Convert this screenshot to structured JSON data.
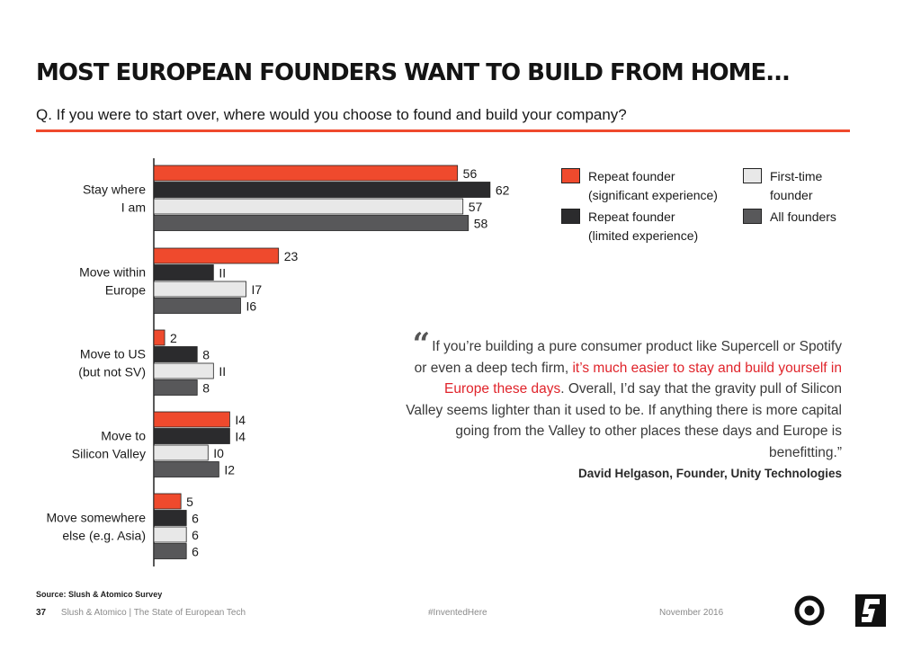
{
  "header": {
    "title": "MOST EUROPEAN FOUNDERS WANT TO BUILD FROM HOME...",
    "question": "Q. If you were to start over, where would you choose to found and build your company?"
  },
  "chart_data": {
    "type": "bar",
    "orientation": "horizontal",
    "categories": [
      [
        "Stay where",
        "I am"
      ],
      [
        "Move within",
        "Europe"
      ],
      [
        "Move to US",
        "(but not SV)"
      ],
      [
        "Move to",
        "Silicon Valley"
      ],
      [
        "Move somewhere",
        "else (e.g. Asia)"
      ]
    ],
    "series": [
      {
        "name": "Repeat founder (significant experience)",
        "color": "#ef4a2d",
        "values": [
          56,
          23,
          2,
          14,
          5
        ],
        "value_labels": [
          "56",
          "23",
          "2",
          "I4",
          "5"
        ]
      },
      {
        "name": "Repeat founder (limited experience)",
        "color": "#2b2b2d",
        "values": [
          62,
          11,
          8,
          14,
          6
        ],
        "value_labels": [
          "62",
          "II",
          "8",
          "I4",
          "6"
        ]
      },
      {
        "name": "First-time founder",
        "color": "#e8e8e8",
        "values": [
          57,
          17,
          11,
          10,
          6
        ],
        "value_labels": [
          "57",
          "I7",
          "II",
          "I0",
          "6"
        ]
      },
      {
        "name": "All founders",
        "color": "#58585a",
        "values": [
          58,
          16,
          8,
          12,
          6
        ],
        "value_labels": [
          "58",
          "I6",
          "8",
          "I2",
          "6"
        ]
      }
    ],
    "xlim": [
      0,
      62
    ],
    "legend_position": "top-right",
    "grid": false
  },
  "legend": [
    {
      "lines": [
        "Repeat founder",
        "(significant experience)"
      ],
      "color": "#ef4a2d"
    },
    {
      "lines": [
        "Repeat founder",
        "(limited experience)"
      ],
      "color": "#2b2b2d"
    },
    {
      "lines": [
        "First-time",
        "founder"
      ],
      "color": "#e8e8e8"
    },
    {
      "lines": [
        "All founders"
      ],
      "color": "#58585a"
    }
  ],
  "quote": {
    "open_mark": "“",
    "lead": "If you’re building a pure consumer product like Supercell or Spotify or even a deep tech firm,",
    "highlight": "it’s much easier to stay and build yourself in Europe these days",
    "tail": ". Overall, I’d say that the gravity pull of Silicon Valley seems lighter than it used to be. If anything there is more capital going from the Valley to other places these days and Europe is benefitting.”",
    "attribution": "David Helgason, Founder, Unity Technologies",
    "highlight_color": "#e0242b"
  },
  "footer": {
    "source": "Source: Slush & Atomico Survey",
    "page_number": "37",
    "publication": "Slush & Atomico | The State of European Tech",
    "hashtag": "#InventedHere",
    "date": "November 2016"
  },
  "logos": [
    "atomico-logo-icon",
    "slush-logo-icon"
  ]
}
